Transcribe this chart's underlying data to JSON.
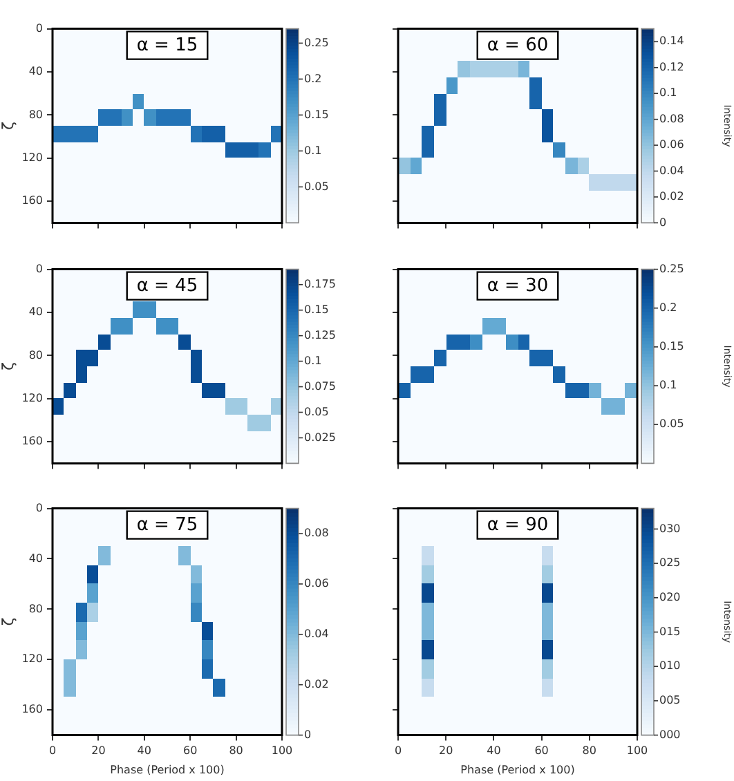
{
  "chart_data": [
    {
      "type": "heatmap",
      "title": "α = 15",
      "ylabel": "ζ",
      "xlim": [
        0,
        100
      ],
      "xticks": [
        0,
        20,
        40,
        60,
        80,
        100
      ],
      "ylim": [
        180,
        0
      ],
      "yticks": [
        0,
        40,
        80,
        120,
        160
      ],
      "tick_labels": "y",
      "clim": [
        0,
        0.27
      ],
      "cticks": [
        0.05,
        0.1,
        0.15,
        0.2,
        0.25
      ],
      "cells": [
        [
          0,
          0,
          0,
          0,
          0,
          0,
          0,
          0,
          0,
          0,
          0,
          0,
          0,
          0,
          0,
          0,
          0,
          0,
          0,
          0
        ],
        [
          0,
          0,
          0,
          0,
          0,
          0,
          0,
          0,
          0,
          0,
          0,
          0,
          0,
          0,
          0,
          0,
          0,
          0,
          0,
          0
        ],
        [
          0,
          0,
          0,
          0,
          0,
          0,
          0,
          0,
          0,
          0,
          0,
          0,
          0,
          0,
          0,
          0,
          0,
          0,
          0,
          0
        ],
        [
          0,
          0,
          0,
          0,
          0,
          0,
          0,
          0,
          0,
          0,
          0,
          0,
          0,
          0,
          0,
          0,
          0,
          0,
          0,
          0
        ],
        [
          0,
          0,
          0,
          0,
          0,
          0,
          0,
          0.17,
          0,
          0,
          0,
          0,
          0,
          0,
          0,
          0,
          0,
          0,
          0,
          0
        ],
        [
          0,
          0,
          0,
          0,
          0.2,
          0.2,
          0.17,
          0,
          0.17,
          0.2,
          0.2,
          0.2,
          0,
          0,
          0,
          0,
          0,
          0,
          0,
          0
        ],
        [
          0.2,
          0.2,
          0.2,
          0.2,
          0,
          0,
          0,
          0,
          0,
          0,
          0,
          0,
          0.2,
          0.22,
          0.22,
          0,
          0,
          0,
          0,
          0.2
        ],
        [
          0,
          0,
          0,
          0,
          0,
          0,
          0,
          0,
          0,
          0,
          0,
          0,
          0,
          0,
          0,
          0.22,
          0.22,
          0.22,
          0.2,
          0
        ],
        [
          0,
          0,
          0,
          0,
          0,
          0,
          0,
          0,
          0,
          0,
          0,
          0,
          0,
          0,
          0,
          0,
          0,
          0,
          0,
          0
        ],
        [
          0,
          0,
          0,
          0,
          0,
          0,
          0,
          0,
          0,
          0,
          0,
          0,
          0,
          0,
          0,
          0,
          0,
          0,
          0,
          0
        ],
        [
          0,
          0,
          0,
          0,
          0,
          0,
          0,
          0,
          0,
          0,
          0,
          0,
          0,
          0,
          0,
          0,
          0,
          0,
          0,
          0
        ],
        [
          0,
          0,
          0,
          0,
          0,
          0,
          0,
          0,
          0,
          0,
          0,
          0,
          0,
          0,
          0,
          0,
          0,
          0,
          0,
          0
        ]
      ]
    },
    {
      "type": "heatmap",
      "title": "α = 60",
      "clabel": "Intensity",
      "xlim": [
        0,
        100
      ],
      "xticks": [
        0,
        20,
        40,
        60,
        80,
        100
      ],
      "ylim": [
        180,
        0
      ],
      "yticks": [
        0,
        40,
        80,
        120,
        160
      ],
      "tick_labels": false,
      "clim": [
        0,
        0.15
      ],
      "cticks": [
        0,
        0.02,
        0.04,
        0.06,
        0.08,
        0.1,
        0.12,
        0.14
      ],
      "cells": [
        [
          0,
          0,
          0,
          0,
          0,
          0,
          0,
          0,
          0,
          0,
          0,
          0,
          0,
          0,
          0,
          0,
          0,
          0,
          0,
          0
        ],
        [
          0,
          0,
          0,
          0,
          0,
          0,
          0,
          0,
          0,
          0,
          0,
          0,
          0,
          0,
          0,
          0,
          0,
          0,
          0,
          0
        ],
        [
          0,
          0,
          0,
          0,
          0,
          0.06,
          0.05,
          0.05,
          0.05,
          0.05,
          0.07,
          0,
          0,
          0,
          0,
          0,
          0,
          0,
          0,
          0
        ],
        [
          0,
          0,
          0,
          0,
          0.09,
          0,
          0,
          0,
          0,
          0,
          0,
          0.12,
          0,
          0,
          0,
          0,
          0,
          0,
          0,
          0
        ],
        [
          0,
          0,
          0,
          0.12,
          0,
          0,
          0,
          0,
          0,
          0,
          0,
          0.12,
          0,
          0,
          0,
          0,
          0,
          0,
          0,
          0
        ],
        [
          0,
          0,
          0,
          0.12,
          0,
          0,
          0,
          0,
          0,
          0,
          0,
          0,
          0.13,
          0,
          0,
          0,
          0,
          0,
          0,
          0
        ],
        [
          0,
          0,
          0.12,
          0,
          0,
          0,
          0,
          0,
          0,
          0,
          0,
          0,
          0.13,
          0,
          0,
          0,
          0,
          0,
          0,
          0
        ],
        [
          0,
          0,
          0.12,
          0,
          0,
          0,
          0,
          0,
          0,
          0,
          0,
          0,
          0,
          0.1,
          0,
          0,
          0,
          0,
          0,
          0
        ],
        [
          0.06,
          0.08,
          0,
          0,
          0,
          0,
          0,
          0,
          0,
          0,
          0,
          0,
          0,
          0,
          0.07,
          0.05,
          0,
          0,
          0,
          0
        ],
        [
          0,
          0,
          0,
          0,
          0,
          0,
          0,
          0,
          0,
          0,
          0,
          0,
          0,
          0,
          0,
          0,
          0.04,
          0.04,
          0.04,
          0.04
        ],
        [
          0,
          0,
          0,
          0,
          0,
          0,
          0,
          0,
          0,
          0,
          0,
          0,
          0,
          0,
          0,
          0,
          0,
          0,
          0,
          0
        ],
        [
          0,
          0,
          0,
          0,
          0,
          0,
          0,
          0,
          0,
          0,
          0,
          0,
          0,
          0,
          0,
          0,
          0,
          0,
          0,
          0
        ]
      ]
    },
    {
      "type": "heatmap",
      "title": "α = 45",
      "ylabel": "ζ",
      "xlim": [
        0,
        100
      ],
      "xticks": [
        0,
        20,
        40,
        60,
        80,
        100
      ],
      "ylim": [
        180,
        0
      ],
      "yticks": [
        0,
        40,
        80,
        120,
        160
      ],
      "tick_labels": "y",
      "clim": [
        0,
        0.19
      ],
      "cticks": [
        0.025,
        0.05,
        0.075,
        0.1,
        0.125,
        0.15,
        0.175
      ],
      "cells": [
        [
          0,
          0,
          0,
          0,
          0,
          0,
          0,
          0,
          0,
          0,
          0,
          0,
          0,
          0,
          0,
          0,
          0,
          0,
          0,
          0
        ],
        [
          0,
          0,
          0,
          0,
          0,
          0,
          0,
          0,
          0,
          0,
          0,
          0,
          0,
          0,
          0,
          0,
          0,
          0,
          0,
          0
        ],
        [
          0,
          0,
          0,
          0,
          0,
          0,
          0,
          0.12,
          0.12,
          0,
          0,
          0,
          0,
          0,
          0,
          0,
          0,
          0,
          0,
          0
        ],
        [
          0,
          0,
          0,
          0,
          0,
          0.12,
          0.12,
          0,
          0,
          0.12,
          0.12,
          0,
          0,
          0,
          0,
          0,
          0,
          0,
          0,
          0
        ],
        [
          0,
          0,
          0,
          0,
          0.17,
          0,
          0,
          0,
          0,
          0,
          0,
          0.17,
          0,
          0,
          0,
          0,
          0,
          0,
          0,
          0
        ],
        [
          0,
          0,
          0.17,
          0.17,
          0,
          0,
          0,
          0,
          0,
          0,
          0,
          0,
          0.17,
          0,
          0,
          0,
          0,
          0,
          0,
          0
        ],
        [
          0,
          0,
          0.17,
          0,
          0,
          0,
          0,
          0,
          0,
          0,
          0,
          0,
          0.17,
          0,
          0,
          0,
          0,
          0,
          0,
          0
        ],
        [
          0,
          0.17,
          0,
          0,
          0,
          0,
          0,
          0,
          0,
          0,
          0,
          0,
          0,
          0.17,
          0.17,
          0,
          0,
          0,
          0,
          0
        ],
        [
          0.17,
          0,
          0,
          0,
          0,
          0,
          0,
          0,
          0,
          0,
          0,
          0,
          0,
          0,
          0,
          0.07,
          0.07,
          0,
          0,
          0.07
        ],
        [
          0,
          0,
          0,
          0,
          0,
          0,
          0,
          0,
          0,
          0,
          0,
          0,
          0,
          0,
          0,
          0,
          0,
          0.07,
          0.07,
          0
        ],
        [
          0,
          0,
          0,
          0,
          0,
          0,
          0,
          0,
          0,
          0,
          0,
          0,
          0,
          0,
          0,
          0,
          0,
          0,
          0,
          0
        ],
        [
          0,
          0,
          0,
          0,
          0,
          0,
          0,
          0,
          0,
          0,
          0,
          0,
          0,
          0,
          0,
          0,
          0,
          0,
          0,
          0
        ]
      ]
    },
    {
      "type": "heatmap",
      "title": "α = 30",
      "clabel": "Intensity",
      "xlim": [
        0,
        100
      ],
      "xticks": [
        0,
        20,
        40,
        60,
        80,
        100
      ],
      "ylim": [
        180,
        0
      ],
      "yticks": [
        0,
        40,
        80,
        120,
        160
      ],
      "tick_labels": false,
      "clim": [
        0,
        0.25
      ],
      "cticks": [
        0.05,
        0.1,
        0.15,
        0.2,
        0.25
      ],
      "cells": [
        [
          0,
          0,
          0,
          0,
          0,
          0,
          0,
          0,
          0,
          0,
          0,
          0,
          0,
          0,
          0,
          0,
          0,
          0,
          0,
          0
        ],
        [
          0,
          0,
          0,
          0,
          0,
          0,
          0,
          0,
          0,
          0,
          0,
          0,
          0,
          0,
          0,
          0,
          0,
          0,
          0,
          0
        ],
        [
          0,
          0,
          0,
          0,
          0,
          0,
          0,
          0,
          0,
          0,
          0,
          0,
          0,
          0,
          0,
          0,
          0,
          0,
          0,
          0
        ],
        [
          0,
          0,
          0,
          0,
          0,
          0,
          0,
          0.13,
          0.13,
          0,
          0,
          0,
          0,
          0,
          0,
          0,
          0,
          0,
          0,
          0
        ],
        [
          0,
          0,
          0,
          0,
          0.2,
          0.2,
          0.16,
          0,
          0,
          0.16,
          0.2,
          0,
          0,
          0,
          0,
          0,
          0,
          0,
          0,
          0
        ],
        [
          0,
          0,
          0,
          0.2,
          0,
          0,
          0,
          0,
          0,
          0,
          0,
          0.2,
          0.2,
          0,
          0,
          0,
          0,
          0,
          0,
          0
        ],
        [
          0,
          0.2,
          0.2,
          0,
          0,
          0,
          0,
          0,
          0,
          0,
          0,
          0,
          0,
          0.2,
          0,
          0,
          0,
          0,
          0,
          0
        ],
        [
          0.2,
          0,
          0,
          0,
          0,
          0,
          0,
          0,
          0,
          0,
          0,
          0,
          0,
          0,
          0.2,
          0.2,
          0.12,
          0,
          0,
          0.12
        ],
        [
          0,
          0,
          0,
          0,
          0,
          0,
          0,
          0,
          0,
          0,
          0,
          0,
          0,
          0,
          0,
          0,
          0,
          0.12,
          0.12,
          0
        ],
        [
          0,
          0,
          0,
          0,
          0,
          0,
          0,
          0,
          0,
          0,
          0,
          0,
          0,
          0,
          0,
          0,
          0,
          0,
          0,
          0
        ],
        [
          0,
          0,
          0,
          0,
          0,
          0,
          0,
          0,
          0,
          0,
          0,
          0,
          0,
          0,
          0,
          0,
          0,
          0,
          0,
          0
        ],
        [
          0,
          0,
          0,
          0,
          0,
          0,
          0,
          0,
          0,
          0,
          0,
          0,
          0,
          0,
          0,
          0,
          0,
          0,
          0,
          0
        ]
      ]
    },
    {
      "type": "heatmap",
      "title": "α = 75",
      "xlabel": "Phase (Period x 100)",
      "ylabel": "ζ",
      "xlim": [
        0,
        100
      ],
      "xticks": [
        0,
        20,
        40,
        60,
        80,
        100
      ],
      "ylim": [
        180,
        0
      ],
      "yticks": [
        0,
        40,
        80,
        120,
        160
      ],
      "clim": [
        0,
        0.09
      ],
      "cticks": [
        0,
        0.02,
        0.04,
        0.06,
        0.08
      ],
      "cells": [
        [
          0,
          0,
          0,
          0,
          0,
          0,
          0,
          0,
          0,
          0,
          0,
          0,
          0,
          0,
          0,
          0,
          0,
          0,
          0,
          0
        ],
        [
          0,
          0,
          0,
          0,
          0,
          0,
          0,
          0,
          0,
          0,
          0,
          0,
          0,
          0,
          0,
          0,
          0,
          0,
          0,
          0
        ],
        [
          0,
          0,
          0,
          0,
          0.04,
          0,
          0,
          0,
          0,
          0,
          0,
          0.04,
          0,
          0,
          0,
          0,
          0,
          0,
          0,
          0
        ],
        [
          0,
          0,
          0,
          0.08,
          0,
          0,
          0,
          0,
          0,
          0,
          0,
          0,
          0.04,
          0,
          0,
          0,
          0,
          0,
          0,
          0
        ],
        [
          0,
          0,
          0,
          0.05,
          0,
          0,
          0,
          0,
          0,
          0,
          0,
          0,
          0.05,
          0,
          0,
          0,
          0,
          0,
          0,
          0
        ],
        [
          0,
          0,
          0.07,
          0.03,
          0,
          0,
          0,
          0,
          0,
          0,
          0,
          0,
          0.06,
          0,
          0,
          0,
          0,
          0,
          0,
          0
        ],
        [
          0,
          0,
          0.05,
          0,
          0,
          0,
          0,
          0,
          0,
          0,
          0,
          0,
          0,
          0.08,
          0,
          0,
          0,
          0,
          0,
          0
        ],
        [
          0,
          0,
          0.04,
          0,
          0,
          0,
          0,
          0,
          0,
          0,
          0,
          0,
          0,
          0.06,
          0,
          0,
          0,
          0,
          0,
          0
        ],
        [
          0,
          0.04,
          0,
          0,
          0,
          0,
          0,
          0,
          0,
          0,
          0,
          0,
          0,
          0.07,
          0,
          0,
          0,
          0,
          0,
          0
        ],
        [
          0,
          0.04,
          0,
          0,
          0,
          0,
          0,
          0,
          0,
          0,
          0,
          0,
          0,
          0,
          0.07,
          0,
          0,
          0,
          0,
          0
        ],
        [
          0,
          0,
          0,
          0,
          0,
          0,
          0,
          0,
          0,
          0,
          0,
          0,
          0,
          0,
          0,
          0,
          0,
          0,
          0,
          0
        ],
        [
          0,
          0,
          0,
          0,
          0,
          0,
          0,
          0,
          0,
          0,
          0,
          0,
          0,
          0,
          0,
          0,
          0,
          0,
          0,
          0
        ]
      ]
    },
    {
      "type": "heatmap",
      "title": "α = 90",
      "xlabel": "Phase (Period x 100)",
      "clabel": "Intensity",
      "xlim": [
        0,
        100
      ],
      "xticks": [
        0,
        20,
        40,
        60,
        80,
        100
      ],
      "ylim": [
        180,
        0
      ],
      "yticks": [
        0,
        40,
        80,
        120,
        160
      ],
      "tick_labels": "x",
      "clim": [
        0,
        33
      ],
      "cticks": [
        {
          "value": 0,
          "label": "000"
        },
        {
          "value": 5,
          "label": "005"
        },
        {
          "value": 10,
          "label": "010"
        },
        {
          "value": 15,
          "label": "015"
        },
        {
          "value": 20,
          "label": "020"
        },
        {
          "value": 25,
          "label": "025"
        },
        {
          "value": 30,
          "label": "030"
        }
      ],
      "cells": [
        [
          0,
          0,
          0,
          0,
          0,
          0,
          0,
          0,
          0,
          0,
          0,
          0,
          0,
          0,
          0,
          0,
          0,
          0,
          0,
          0
        ],
        [
          0,
          0,
          0,
          0,
          0,
          0,
          0,
          0,
          0,
          0,
          0,
          0,
          0,
          0,
          0,
          0,
          0,
          0,
          0,
          0
        ],
        [
          0,
          0,
          8,
          0,
          0,
          0,
          0,
          0,
          0,
          0,
          0,
          0,
          8,
          0,
          0,
          0,
          0,
          0,
          0,
          0
        ],
        [
          0,
          0,
          12,
          0,
          0,
          0,
          0,
          0,
          0,
          0,
          0,
          0,
          12,
          0,
          0,
          0,
          0,
          0,
          0,
          0
        ],
        [
          0,
          0,
          30,
          0,
          0,
          0,
          0,
          0,
          0,
          0,
          0,
          0,
          30,
          0,
          0,
          0,
          0,
          0,
          0,
          0
        ],
        [
          0,
          0,
          15,
          0,
          0,
          0,
          0,
          0,
          0,
          0,
          0,
          0,
          15,
          0,
          0,
          0,
          0,
          0,
          0,
          0
        ],
        [
          0,
          0,
          15,
          0,
          0,
          0,
          0,
          0,
          0,
          0,
          0,
          0,
          15,
          0,
          0,
          0,
          0,
          0,
          0,
          0
        ],
        [
          0,
          0,
          30,
          0,
          0,
          0,
          0,
          0,
          0,
          0,
          0,
          0,
          30,
          0,
          0,
          0,
          0,
          0,
          0,
          0
        ],
        [
          0,
          0,
          12,
          0,
          0,
          0,
          0,
          0,
          0,
          0,
          0,
          0,
          12,
          0,
          0,
          0,
          0,
          0,
          0,
          0
        ],
        [
          0,
          0,
          8,
          0,
          0,
          0,
          0,
          0,
          0,
          0,
          0,
          0,
          8,
          0,
          0,
          0,
          0,
          0,
          0,
          0
        ],
        [
          0,
          0,
          0,
          0,
          0,
          0,
          0,
          0,
          0,
          0,
          0,
          0,
          0,
          0,
          0,
          0,
          0,
          0,
          0,
          0
        ],
        [
          0,
          0,
          0,
          0,
          0,
          0,
          0,
          0,
          0,
          0,
          0,
          0,
          0,
          0,
          0,
          0,
          0,
          0,
          0,
          0
        ]
      ]
    }
  ]
}
